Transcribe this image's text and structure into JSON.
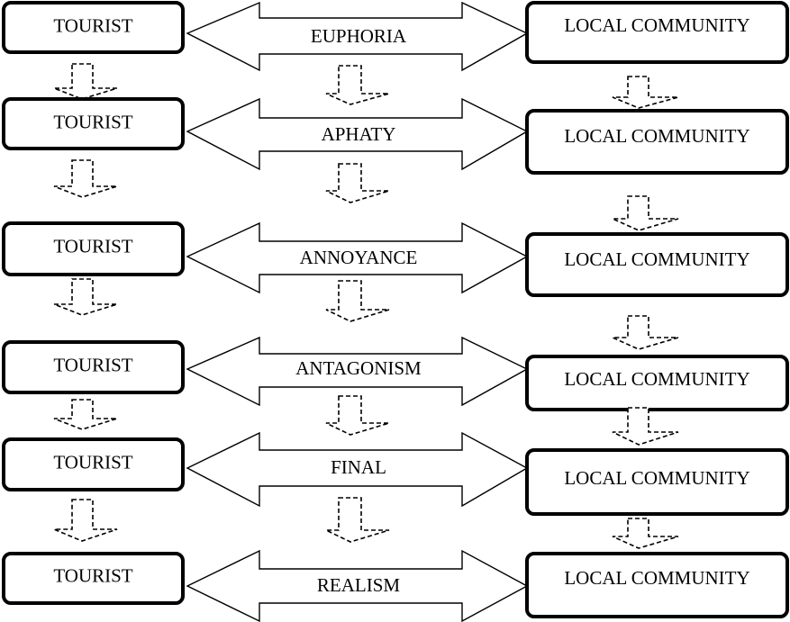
{
  "diagram": {
    "tourist_label": "TOURIST",
    "community_label": "LOCAL COMMUNITY",
    "stages": [
      {
        "relation": "EUPHORIA"
      },
      {
        "relation": "APHATY"
      },
      {
        "relation": "ANNOYANCE"
      },
      {
        "relation": "ANTAGONISM"
      },
      {
        "relation": "FINAL"
      },
      {
        "relation": "REALISM"
      }
    ]
  }
}
